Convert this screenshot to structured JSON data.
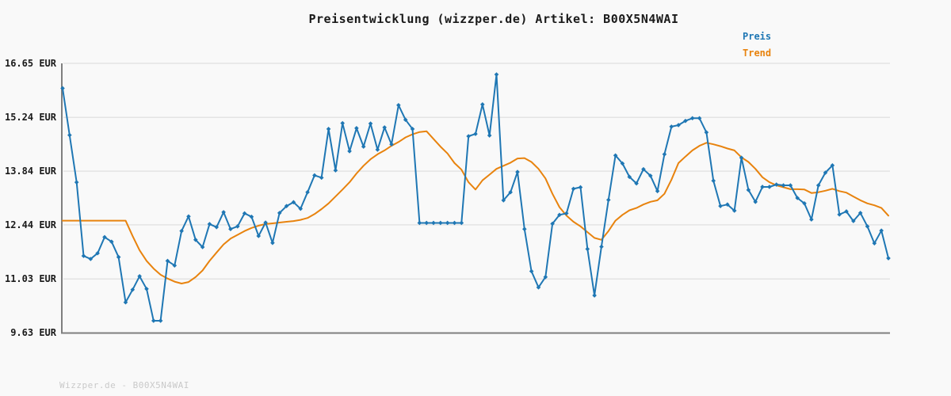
{
  "title": "Preisentwicklung (wizzper.de) Artikel: B00X5N4WAI",
  "footer": "Wizzper.de - B00X5N4WAI",
  "legend": {
    "items": [
      {
        "label": "Preis",
        "color": "#1f77b4"
      },
      {
        "label": "Trend",
        "color": "#e8830e"
      }
    ]
  },
  "colors": {
    "background": "#f9f9f9",
    "grid": "#e4e4e4",
    "axis": "#7f7f7f",
    "price_line": "#1f77b4",
    "trend_line": "#e8830e",
    "footer_text": "#c9c9c9"
  },
  "chart_data": {
    "type": "line",
    "title": "Preisentwicklung (wizzper.de) Artikel: B00X5N4WAI",
    "currency": "EUR",
    "ylabel": "",
    "xlabel": "",
    "grid": true,
    "legend_position": "top-right",
    "ylim": [
      9.63,
      16.65
    ],
    "y_ticks": [
      16.65,
      15.24,
      13.84,
      12.44,
      11.03,
      9.63
    ],
    "tick_suffix": " EUR",
    "x_count": 119,
    "series": [
      {
        "name": "Preis",
        "color": "#1f77b4",
        "markers": true,
        "values": [
          16.0,
          14.78,
          13.55,
          11.63,
          11.55,
          11.7,
          12.12,
          12.0,
          11.6,
          10.42,
          10.75,
          11.1,
          10.77,
          9.94,
          9.94,
          11.5,
          11.38,
          12.28,
          12.66,
          12.05,
          11.86,
          12.46,
          12.38,
          12.77,
          12.33,
          12.4,
          12.74,
          12.65,
          12.15,
          12.5,
          11.97,
          12.75,
          12.93,
          13.03,
          12.86,
          13.29,
          13.73,
          13.67,
          14.94,
          13.86,
          15.09,
          14.36,
          14.96,
          14.48,
          15.08,
          14.4,
          14.98,
          14.54,
          15.56,
          15.18,
          14.94,
          12.49,
          12.49,
          12.49,
          12.49,
          12.49,
          12.49,
          12.49,
          14.75,
          14.81,
          15.58,
          14.77,
          16.36,
          13.08,
          13.29,
          13.82,
          12.33,
          11.23,
          10.81,
          11.08,
          12.47,
          12.7,
          12.74,
          13.38,
          13.42,
          11.81,
          10.6,
          11.87,
          13.09,
          14.25,
          14.04,
          13.69,
          13.52,
          13.89,
          13.72,
          13.32,
          14.28,
          15.0,
          15.04,
          15.15,
          15.22,
          15.22,
          14.85,
          13.59,
          12.93,
          12.97,
          12.81,
          14.19,
          13.35,
          13.04,
          13.43,
          13.43,
          13.49,
          13.47,
          13.47,
          13.14,
          13.0,
          12.58,
          13.47,
          13.8,
          13.99,
          12.71,
          12.79,
          12.54,
          12.75,
          12.4,
          11.96,
          12.29,
          11.57
        ]
      },
      {
        "name": "Trend",
        "color": "#e8830e",
        "markers": false,
        "values": [
          12.55,
          12.55,
          12.55,
          12.55,
          12.55,
          12.55,
          12.55,
          12.55,
          12.55,
          12.55,
          12.15,
          11.78,
          11.5,
          11.3,
          11.14,
          11.04,
          10.96,
          10.91,
          10.95,
          11.08,
          11.25,
          11.5,
          11.72,
          11.93,
          12.08,
          12.18,
          12.28,
          12.36,
          12.42,
          12.46,
          12.48,
          12.5,
          12.52,
          12.54,
          12.57,
          12.62,
          12.72,
          12.85,
          13.0,
          13.18,
          13.36,
          13.55,
          13.78,
          13.98,
          14.15,
          14.28,
          14.38,
          14.5,
          14.6,
          14.72,
          14.8,
          14.86,
          14.88,
          14.68,
          14.48,
          14.3,
          14.05,
          13.88,
          13.55,
          13.36,
          13.6,
          13.75,
          13.9,
          13.98,
          14.06,
          14.17,
          14.18,
          14.08,
          13.9,
          13.65,
          13.25,
          12.9,
          12.68,
          12.52,
          12.4,
          12.25,
          12.1,
          12.05,
          12.28,
          12.55,
          12.7,
          12.82,
          12.88,
          12.97,
          13.04,
          13.08,
          13.25,
          13.62,
          14.05,
          14.22,
          14.38,
          14.5,
          14.58,
          14.54,
          14.49,
          14.43,
          14.38,
          14.2,
          14.08,
          13.9,
          13.68,
          13.55,
          13.47,
          13.42,
          13.37,
          13.37,
          13.36,
          13.27,
          13.29,
          13.33,
          13.38,
          13.32,
          13.28,
          13.18,
          13.08,
          13.0,
          12.95,
          12.88,
          12.68
        ]
      }
    ]
  }
}
